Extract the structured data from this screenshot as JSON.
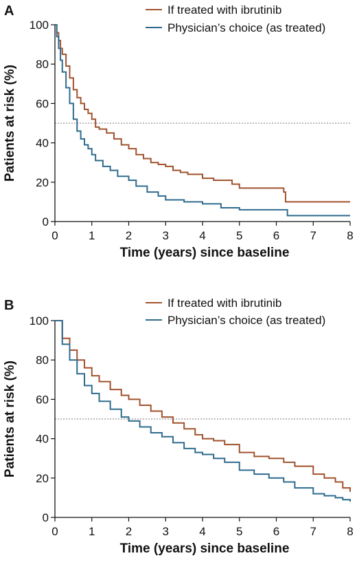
{
  "colors": {
    "ibrutinib": "#a0522d",
    "physician": "#2e6b8e",
    "reference": "#777777"
  },
  "chart_data": [
    {
      "panel": "A",
      "type": "line",
      "xlabel": "Time (years) since baseline",
      "ylabel": "Patients at risk (%)",
      "xlim": [
        0,
        8
      ],
      "ylim": [
        0,
        100
      ],
      "xticks": [
        0,
        1,
        2,
        3,
        4,
        5,
        6,
        7,
        8
      ],
      "yticks": [
        0,
        20,
        40,
        60,
        80,
        100
      ],
      "reference_y": 50,
      "legend_position": "top-right",
      "series": [
        {
          "name": "If treated with ibrutinib",
          "color": "#a0522d",
          "x": [
            0,
            0.05,
            0.1,
            0.15,
            0.2,
            0.3,
            0.4,
            0.5,
            0.6,
            0.7,
            0.8,
            0.9,
            1.0,
            1.1,
            1.2,
            1.4,
            1.6,
            1.8,
            2.0,
            2.2,
            2.4,
            2.6,
            2.8,
            3.0,
            3.2,
            3.4,
            3.6,
            3.8,
            4.0,
            4.3,
            4.6,
            4.8,
            5.0,
            5.5,
            6.0,
            6.2,
            6.25,
            6.6,
            7.0,
            7.5,
            8.0
          ],
          "y": [
            100,
            96,
            92,
            88,
            85,
            79,
            73,
            67,
            63,
            60,
            57,
            55,
            52,
            48,
            47,
            45,
            42,
            39,
            37,
            34,
            32,
            30,
            29,
            28,
            26,
            25,
            24,
            24,
            22,
            21,
            21,
            19,
            17,
            17,
            17,
            15,
            10,
            10,
            10,
            10,
            10
          ]
        },
        {
          "name": "Physician’s choice (as treated)",
          "color": "#2e6b8e",
          "x": [
            0,
            0.05,
            0.1,
            0.15,
            0.2,
            0.3,
            0.4,
            0.5,
            0.6,
            0.7,
            0.8,
            0.9,
            1.0,
            1.1,
            1.3,
            1.5,
            1.7,
            2.0,
            2.2,
            2.5,
            2.8,
            3.0,
            3.5,
            4.0,
            4.5,
            5.0,
            5.5,
            6.0,
            6.2,
            6.3,
            7.0,
            8.0
          ],
          "y": [
            100,
            94,
            88,
            82,
            76,
            68,
            60,
            52,
            46,
            42,
            39,
            37,
            34,
            31,
            28,
            26,
            23,
            21,
            18,
            15,
            13,
            11,
            10,
            9,
            7,
            6,
            6,
            6,
            6,
            3,
            3,
            3
          ]
        }
      ]
    },
    {
      "panel": "B",
      "type": "line",
      "xlabel": "Time (years) since baseline",
      "ylabel": "Patients at risk (%)",
      "xlim": [
        0,
        8
      ],
      "ylim": [
        0,
        100
      ],
      "xticks": [
        0,
        1,
        2,
        3,
        4,
        5,
        6,
        7,
        8
      ],
      "yticks": [
        0,
        20,
        40,
        60,
        80,
        100
      ],
      "reference_y": 50,
      "legend_position": "top-right",
      "series": [
        {
          "name": "If treated with ibrutinib",
          "color": "#a0522d",
          "x": [
            0,
            0.2,
            0.4,
            0.6,
            0.8,
            1.0,
            1.2,
            1.5,
            1.8,
            2.0,
            2.3,
            2.6,
            2.9,
            3.2,
            3.5,
            3.8,
            4.0,
            4.3,
            4.6,
            5.0,
            5.4,
            5.8,
            6.2,
            6.5,
            7.0,
            7.3,
            7.6,
            7.8,
            8.0
          ],
          "y": [
            100,
            91,
            85,
            80,
            76,
            72,
            69,
            65,
            62,
            60,
            57,
            54,
            51,
            48,
            45,
            42,
            40,
            39,
            37,
            33,
            31,
            30,
            28,
            26,
            22,
            20,
            18,
            15,
            13
          ]
        },
        {
          "name": "Physician’s choice (as treated)",
          "color": "#2e6b8e",
          "x": [
            0,
            0.2,
            0.4,
            0.6,
            0.8,
            1.0,
            1.2,
            1.5,
            1.8,
            2.0,
            2.3,
            2.6,
            2.9,
            3.2,
            3.5,
            3.8,
            4.0,
            4.3,
            4.6,
            5.0,
            5.4,
            5.8,
            6.2,
            6.5,
            7.0,
            7.3,
            7.6,
            7.8,
            8.0
          ],
          "y": [
            100,
            88,
            80,
            73,
            67,
            63,
            59,
            55,
            51,
            49,
            46,
            43,
            41,
            38,
            35,
            33,
            32,
            30,
            28,
            24,
            22,
            20,
            18,
            15,
            12,
            11,
            10,
            9,
            8
          ]
        }
      ]
    }
  ]
}
